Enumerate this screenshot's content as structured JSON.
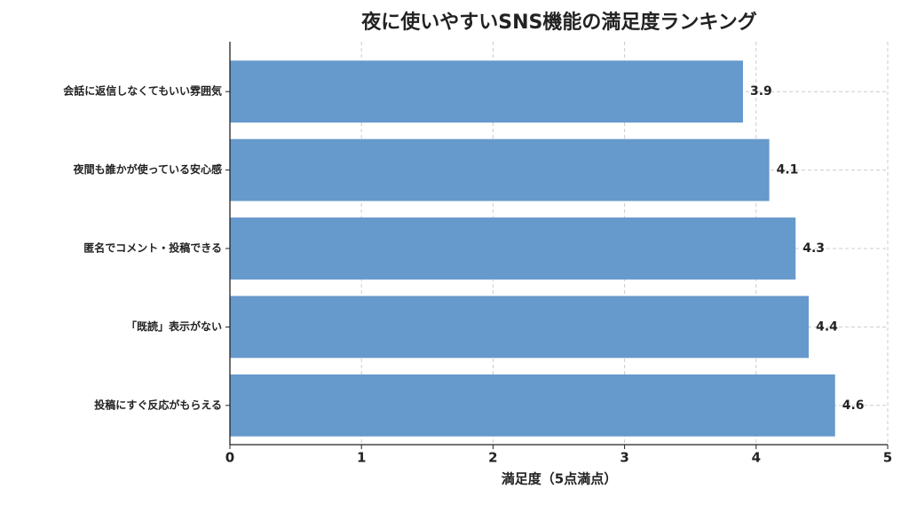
{
  "chart_data": {
    "type": "barh",
    "title": "夜に使いやすいSNS機能の満足度ランキング",
    "categories": [
      "会話に返信しなくてもいい雰囲気",
      "夜間も誰かが使っている安心感",
      "匿名でコメント・投稿できる",
      "「既読」表示がない",
      "投稿にすぐ反応がもらえる"
    ],
    "values": [
      3.9,
      4.1,
      4.3,
      4.4,
      4.6
    ],
    "color": "#6699cc",
    "xlabel": "満足度（5点満点）",
    "xlim": [
      0,
      5
    ],
    "xticks": [
      0,
      1,
      2,
      3,
      4,
      5
    ],
    "grid": true
  }
}
